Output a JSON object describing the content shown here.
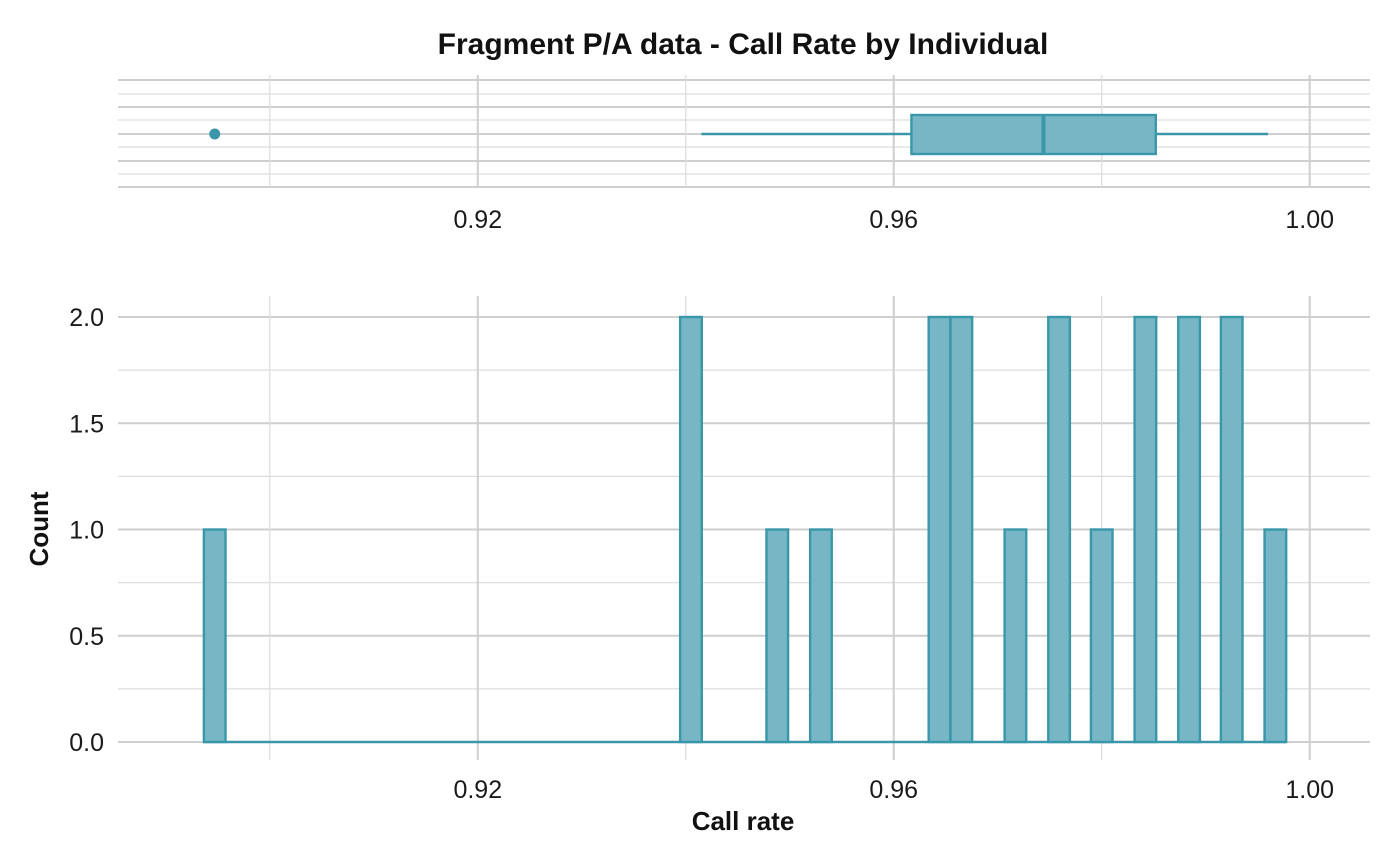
{
  "chart_data": [
    {
      "type": "boxplot",
      "title": "Fragment P/A data - Call Rate by Individual",
      "orientation": "horizontal",
      "xlim": [
        0.8854,
        1.0058
      ],
      "xticks": [
        0.92,
        0.96,
        1.0
      ],
      "xtick_labels": [
        "0.92",
        "0.96",
        "1.00"
      ],
      "stats": {
        "whisker_low": 0.9415,
        "q1": 0.9617,
        "median": 0.9744,
        "q3": 0.9852,
        "whisker_high": 0.996
      },
      "outliers": [
        0.8947
      ],
      "color": "#3a97aa",
      "fill": "#77b6c5",
      "grid": true
    },
    {
      "type": "bar",
      "subtype": "histogram",
      "xlabel": "Call rate",
      "ylabel": "Count",
      "xlim": [
        0.8854,
        1.0058
      ],
      "ylim": [
        -0.1,
        2.1
      ],
      "xticks": [
        0.92,
        0.96,
        1.0
      ],
      "xtick_labels": [
        "0.92",
        "0.96",
        "1.00"
      ],
      "yticks": [
        0,
        0.5,
        1,
        1.5,
        2
      ],
      "ytick_labels": [
        "0.0",
        "0.5",
        "1.0",
        "1.5",
        "2.0"
      ],
      "bin_width": 0.00208,
      "bin_start": 0.8936,
      "bins": [
        {
          "x": 0.8947,
          "count": 1
        },
        {
          "x": 0.9405,
          "count": 2
        },
        {
          "x": 0.9488,
          "count": 1
        },
        {
          "x": 0.953,
          "count": 1
        },
        {
          "x": 0.9644,
          "count": 2
        },
        {
          "x": 0.9665,
          "count": 2
        },
        {
          "x": 0.9717,
          "count": 1
        },
        {
          "x": 0.9759,
          "count": 2
        },
        {
          "x": 0.98,
          "count": 1
        },
        {
          "x": 0.9842,
          "count": 2
        },
        {
          "x": 0.9884,
          "count": 2
        },
        {
          "x": 0.9925,
          "count": 2
        },
        {
          "x": 0.9967,
          "count": 1
        }
      ],
      "color": "#3a97aa",
      "fill": "#77b6c5",
      "grid": true
    }
  ]
}
